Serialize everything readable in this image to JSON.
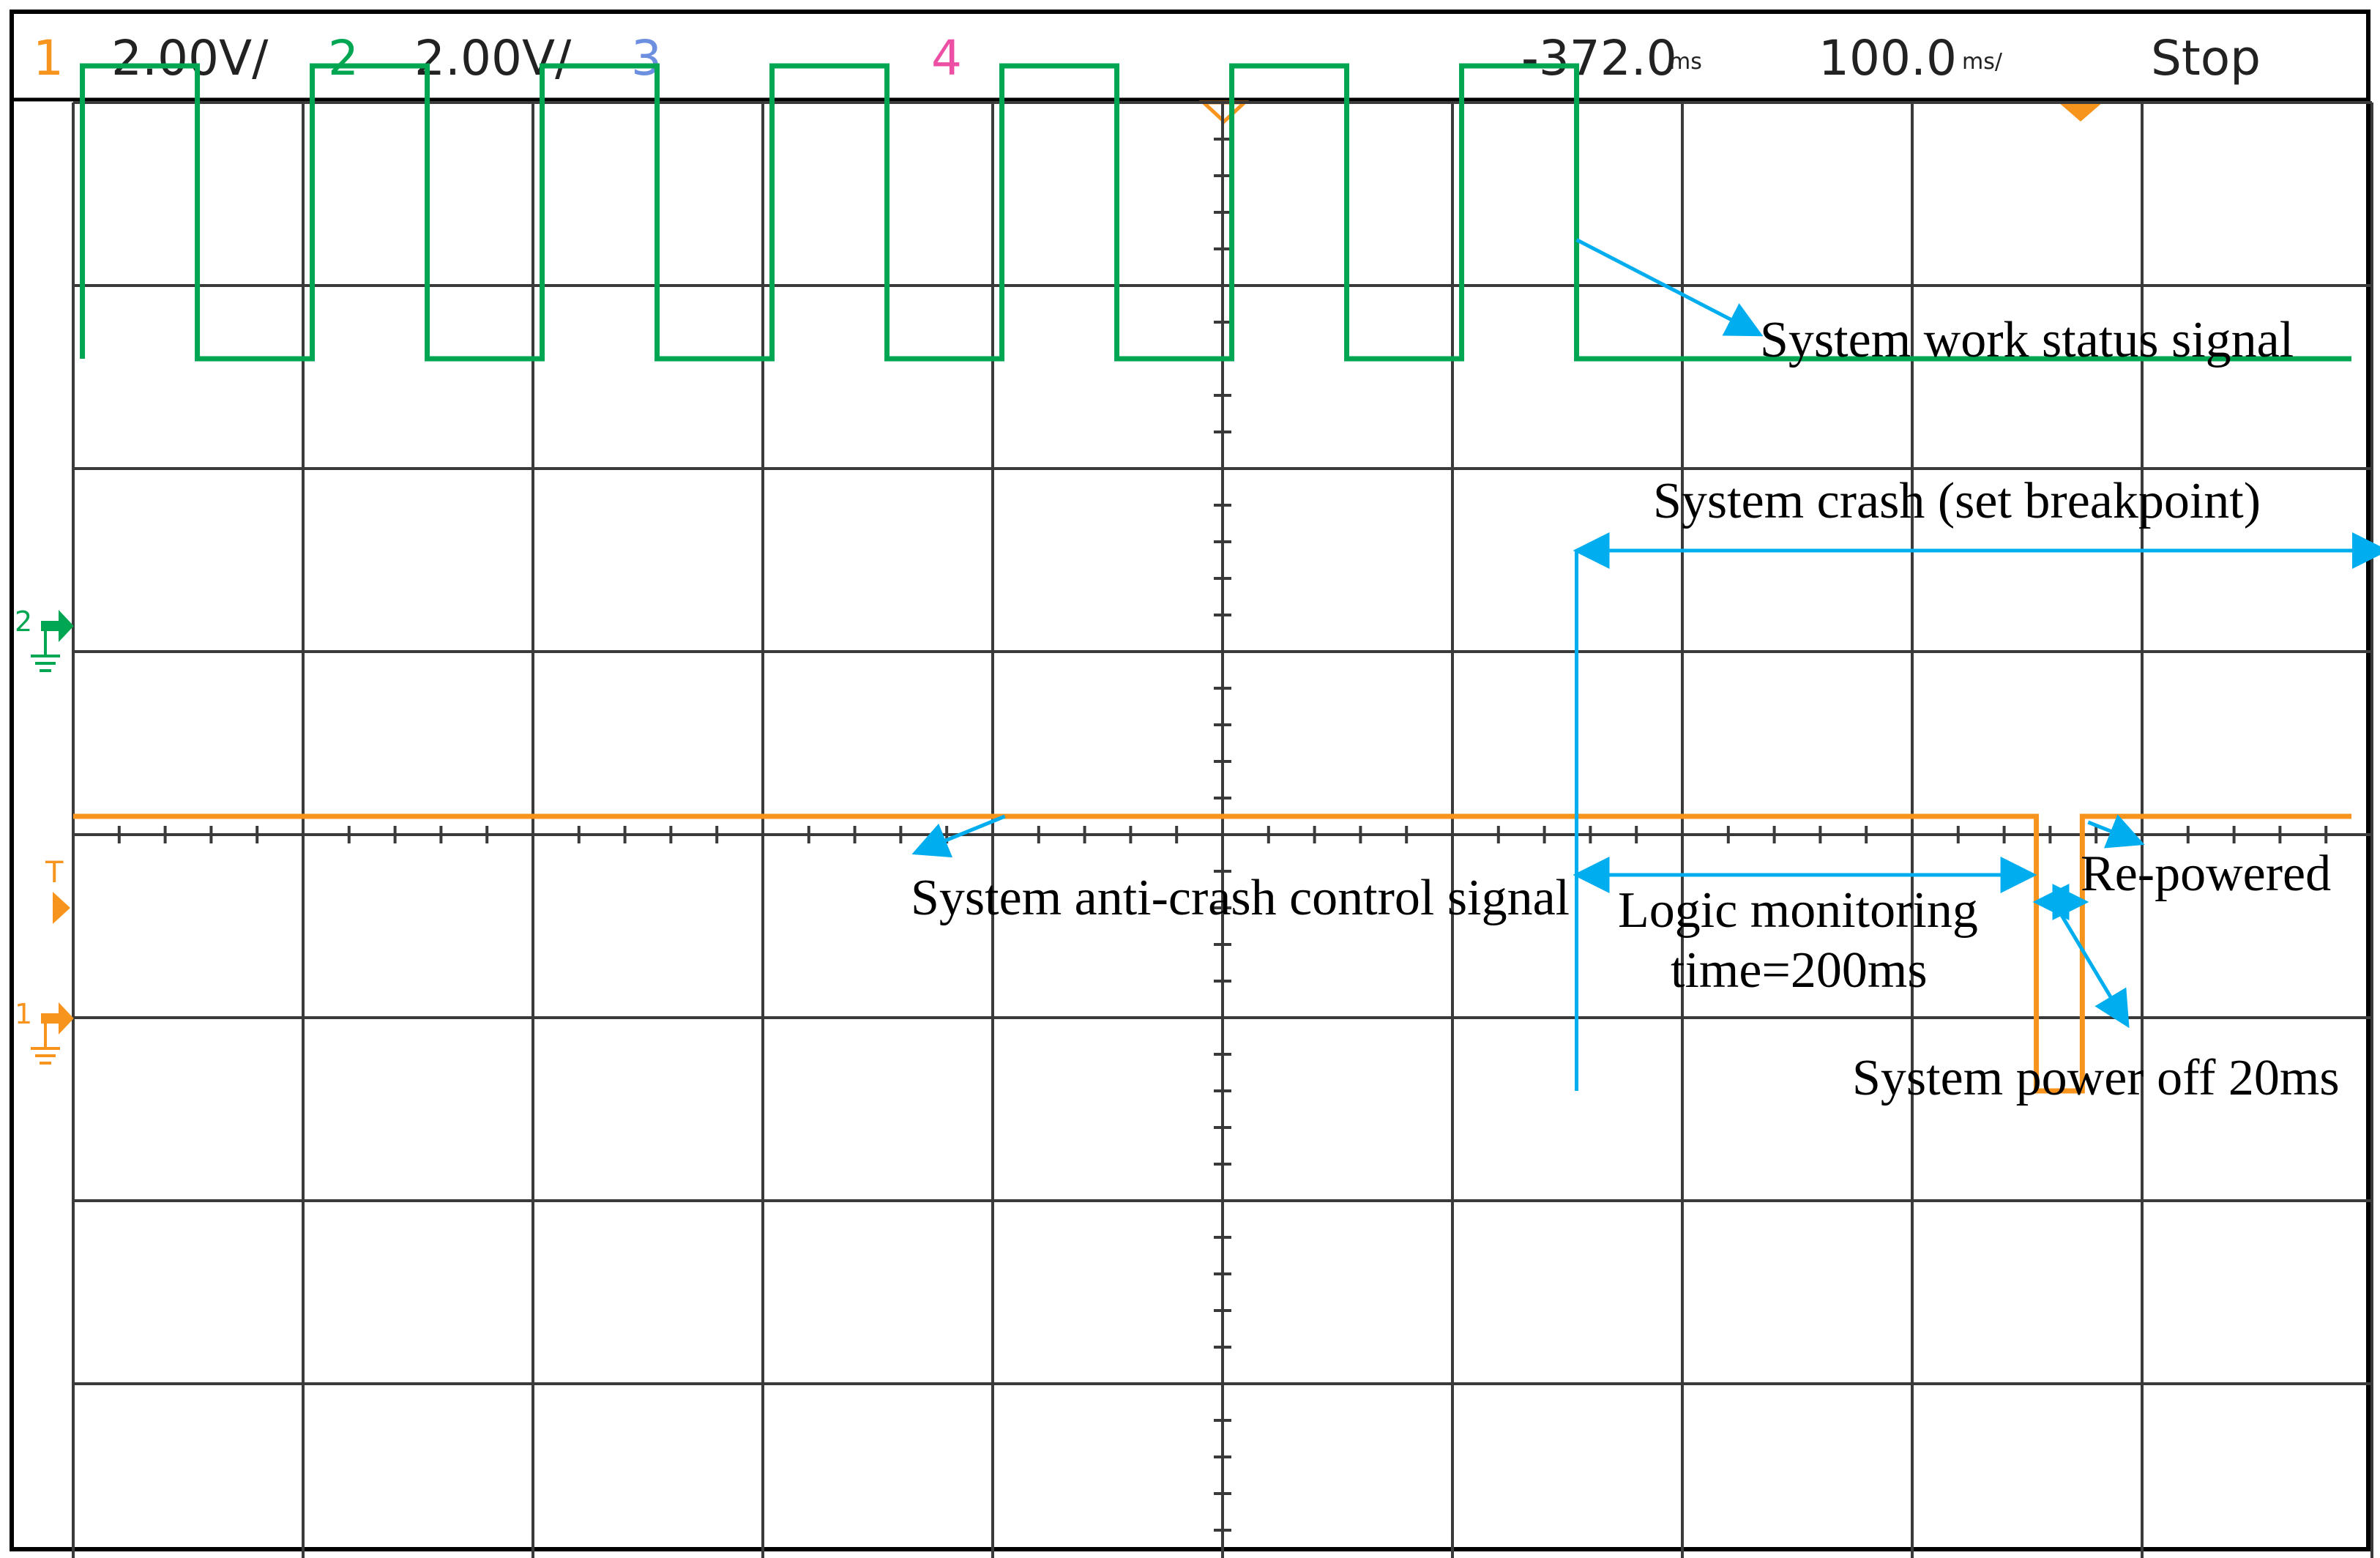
{
  "header": {
    "ch1_num": "1",
    "ch1_scale": "2.00V/",
    "ch2_num": "2",
    "ch2_scale": "2.00V/",
    "ch3_num": "3",
    "ch4_num": "4",
    "time_offset": "-372.0",
    "time_offset_unit": "ms",
    "timebase": "100.0",
    "timebase_unit": "ms/",
    "run_state": "Stop"
  },
  "markers": {
    "ch2_ground": "2",
    "trigger": "T",
    "ch1_ground": "1"
  },
  "annotations": {
    "work_status": "System work status signal",
    "crash": "System crash (set breakpoint)",
    "anti_crash": "System anti-crash control signal",
    "logic_line1": "Logic monitoring",
    "logic_line2": "time=200ms",
    "repowered": "Re-powered",
    "power_off": "System power off 20ms"
  },
  "colors": {
    "ch1": "#f7941d",
    "ch2": "#00a651",
    "ch3": "#6d8fe0",
    "ch4": "#ec4fa4",
    "grid": "#3a3a3a",
    "annotation": "#00aeef"
  },
  "chart_data": {
    "type": "line",
    "x_unit": "ms",
    "divisions": {
      "horizontal": 10,
      "vertical": 8
    },
    "xlim": [
      -872,
      128
    ],
    "series": [
      {
        "channel": "2",
        "segments": [
          [
            -868,
            -818
          ],
          [
            -768,
            -718
          ],
          [
            -668,
            -618
          ],
          [
            -568,
            -518
          ],
          [
            -468,
            -418
          ],
          [
            -368,
            -318
          ],
          [
            -268,
            -218
          ]
        ],
        "high_div": 1.6,
        "low_div": 0,
        "stays_low_after": -218
      },
      {
        "channel": "1",
        "level_div": 0.5,
        "power_off": [
          -18,
          2
        ],
        "low_level_div": -1
      }
    ],
    "spans": [
      {
        "from": -218,
        "to": 128
      },
      {
        "from": -218,
        "to": -18
      },
      {
        "from": -18,
        "to": 2
      }
    ]
  }
}
